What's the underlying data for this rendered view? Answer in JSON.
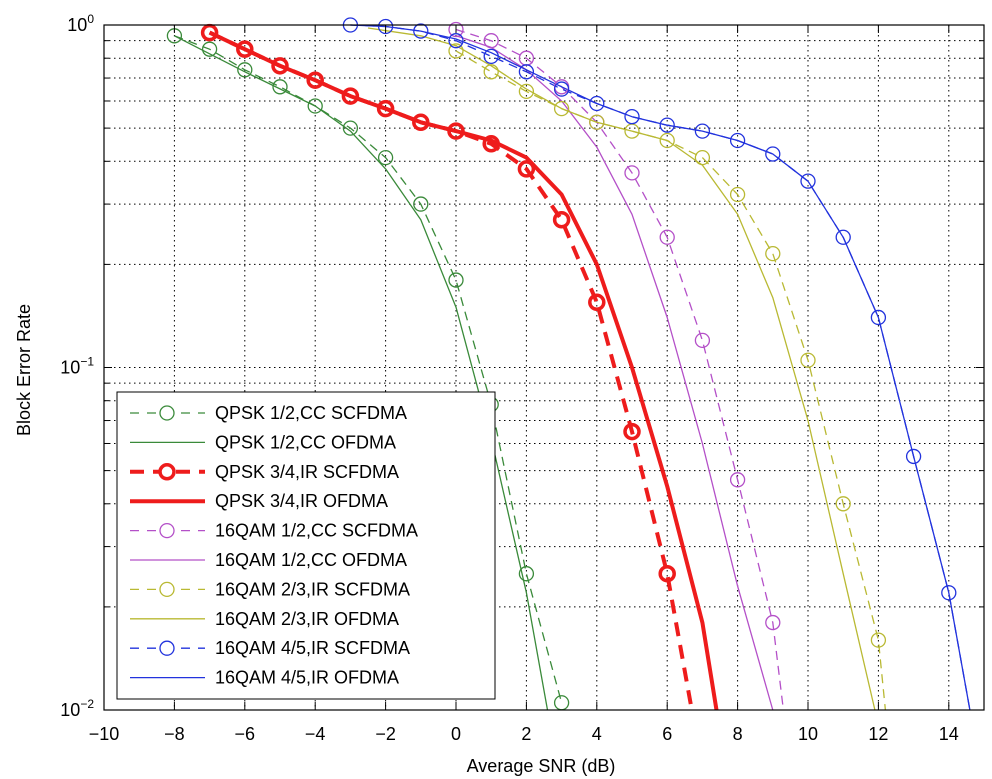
{
  "chart_data": {
    "type": "line",
    "xlabel": "Average SNR (dB)",
    "ylabel": "Block Error Rate",
    "xlim": [
      -10,
      15
    ],
    "ylim": [
      0.01,
      1
    ],
    "yscale": "log",
    "grid": true,
    "legend_position": "bottom-left",
    "x_ticks": [
      -10,
      -8,
      -6,
      -4,
      -2,
      0,
      2,
      4,
      6,
      8,
      10,
      12,
      14
    ],
    "x_tick_labels": [
      "−10",
      "−8",
      "−6",
      "−4",
      "−2",
      "0",
      "2",
      "4",
      "6",
      "8",
      "10",
      "12",
      "14"
    ],
    "y_tick_labels": [
      {
        "base": "10",
        "exp": "0"
      },
      {
        "base": "10",
        "exp": "−1"
      },
      {
        "base": "10",
        "exp": "−2"
      }
    ],
    "series": [
      {
        "name": "QPSK 1/2,CC SCFDMA",
        "color": "#3a8a3a",
        "dash": "dashed",
        "marker": "circle",
        "width": 1.3,
        "x": [
          -8,
          -7,
          -6,
          -5,
          -4,
          -3,
          -2,
          -1,
          0,
          1,
          2,
          3
        ],
        "y": [
          0.93,
          0.85,
          0.74,
          0.66,
          0.58,
          0.5,
          0.41,
          0.3,
          0.18,
          0.078,
          0.025,
          0.0105
        ]
      },
      {
        "name": "QPSK 1/2,CC OFDMA",
        "color": "#3a8a3a",
        "dash": "solid",
        "marker": "none",
        "width": 1.3,
        "x": [
          -8,
          -6,
          -4,
          -3,
          -2,
          -1,
          0,
          1,
          2,
          2.6
        ],
        "y": [
          0.93,
          0.73,
          0.58,
          0.49,
          0.38,
          0.27,
          0.15,
          0.062,
          0.022,
          0.01
        ]
      },
      {
        "name": "QPSK 3/4,IR SCFDMA",
        "color": "#ee1c1c",
        "dash": "dashed",
        "marker": "circle",
        "width": 4,
        "x": [
          -7,
          -6,
          -5,
          -4,
          -3,
          -2,
          -1,
          0,
          1,
          2,
          3,
          4,
          5,
          6,
          6.7
        ],
        "y": [
          0.95,
          0.85,
          0.76,
          0.69,
          0.62,
          0.57,
          0.52,
          0.49,
          0.45,
          0.38,
          0.27,
          0.155,
          0.065,
          0.025,
          0.01
        ]
      },
      {
        "name": "QPSK 3/4,IR OFDMA",
        "color": "#ee1c1c",
        "dash": "solid",
        "marker": "none",
        "width": 4,
        "x": [
          -7,
          -6,
          -5,
          -4,
          -3,
          -2,
          -1,
          0,
          1,
          2,
          3,
          4,
          5,
          6,
          7,
          7.4
        ],
        "y": [
          0.95,
          0.85,
          0.76,
          0.69,
          0.62,
          0.57,
          0.52,
          0.49,
          0.46,
          0.41,
          0.32,
          0.2,
          0.1,
          0.045,
          0.018,
          0.01
        ]
      },
      {
        "name": "16QAM 1/2,CC SCFDMA",
        "color": "#b450c8",
        "dash": "dashed",
        "marker": "circle",
        "width": 1.3,
        "x": [
          0,
          1,
          2,
          3,
          4,
          5,
          6,
          7,
          8,
          9,
          9.3
        ],
        "y": [
          0.97,
          0.9,
          0.8,
          0.66,
          0.52,
          0.37,
          0.24,
          0.12,
          0.047,
          0.018,
          0.01
        ]
      },
      {
        "name": "16QAM 1/2,CC OFDMA",
        "color": "#b450c8",
        "dash": "solid",
        "marker": "none",
        "width": 1.3,
        "x": [
          0,
          1,
          2,
          3,
          4,
          5,
          6,
          7,
          8,
          9
        ],
        "y": [
          0.93,
          0.86,
          0.74,
          0.6,
          0.44,
          0.28,
          0.14,
          0.06,
          0.023,
          0.01
        ]
      },
      {
        "name": "16QAM 2/3,IR SCFDMA",
        "color": "#b9b933",
        "dash": "dashed",
        "marker": "circle",
        "width": 1.3,
        "x": [
          0,
          1,
          2,
          3,
          4,
          5,
          6,
          7,
          8,
          9,
          10,
          11,
          12,
          12.2
        ],
        "y": [
          0.84,
          0.73,
          0.64,
          0.57,
          0.52,
          0.49,
          0.46,
          0.41,
          0.32,
          0.215,
          0.105,
          0.04,
          0.016,
          0.01
        ]
      },
      {
        "name": "16QAM 2/3,IR OFDMA",
        "color": "#b9b933",
        "dash": "solid",
        "marker": "none",
        "width": 1.3,
        "x": [
          -2.5,
          -1,
          0,
          1,
          2,
          3,
          4,
          5,
          6,
          7,
          8,
          9,
          10,
          11,
          11.9
        ],
        "y": [
          0.98,
          0.93,
          0.87,
          0.76,
          0.65,
          0.57,
          0.52,
          0.49,
          0.46,
          0.39,
          0.28,
          0.16,
          0.07,
          0.025,
          0.01
        ]
      },
      {
        "name": "16QAM 4/5,IR SCFDMA",
        "color": "#2233dd",
        "dash": "dashed",
        "marker": "circle",
        "width": 1.3,
        "x": [
          -3,
          -2,
          -1,
          0,
          1,
          2,
          3,
          4,
          5,
          6,
          7,
          8,
          9,
          10,
          11,
          12,
          13,
          14,
          14.6
        ],
        "y": [
          1.0,
          0.99,
          0.96,
          0.9,
          0.81,
          0.73,
          0.65,
          0.59,
          0.54,
          0.51,
          0.49,
          0.46,
          0.42,
          0.35,
          0.24,
          0.14,
          0.055,
          0.022,
          0.01
        ]
      },
      {
        "name": "16QAM 4/5,IR OFDMA",
        "color": "#2233dd",
        "dash": "solid",
        "marker": "none",
        "width": 1.3,
        "x": [
          -3,
          -2,
          -1,
          0,
          1,
          2,
          3,
          4,
          5,
          6,
          7,
          8,
          9,
          10,
          11,
          12,
          13,
          14,
          14.6
        ],
        "y": [
          1.0,
          0.99,
          0.96,
          0.91,
          0.83,
          0.74,
          0.66,
          0.59,
          0.54,
          0.51,
          0.49,
          0.46,
          0.42,
          0.35,
          0.24,
          0.14,
          0.055,
          0.022,
          0.01
        ]
      }
    ]
  }
}
